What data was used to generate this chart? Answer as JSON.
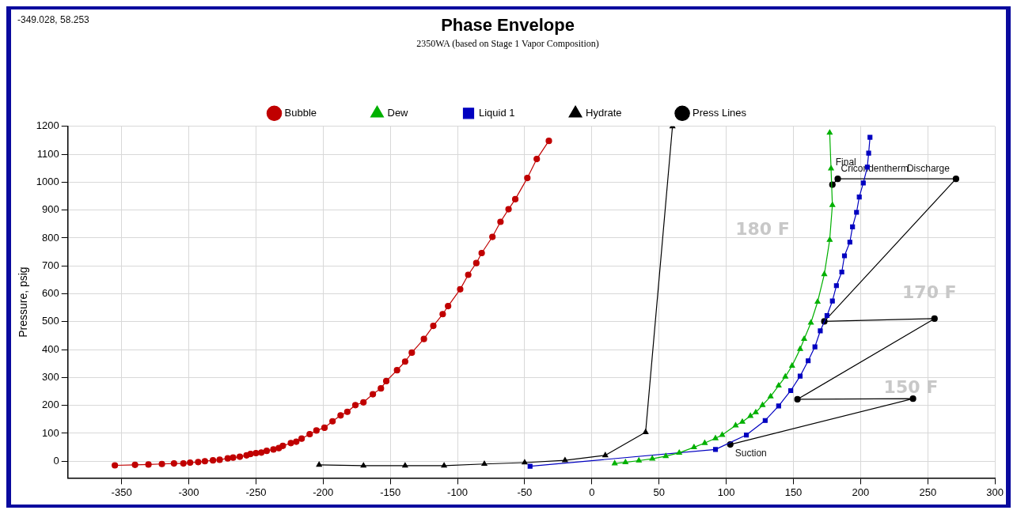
{
  "chart_data": {
    "type": "line",
    "title": "Phase Envelope",
    "subtitle": "2350WA (based on Stage 1 Vapor Composition)",
    "ylabel": "Pressure, psig",
    "xlim": [
      -390,
      300
    ],
    "xticks": [
      -350,
      -300,
      -250,
      -200,
      -150,
      -100,
      -50,
      0,
      50,
      100,
      150,
      200,
      250,
      300
    ],
    "ylim": [
      -60,
      1200
    ],
    "yticks": [
      0,
      100,
      200,
      300,
      400,
      500,
      600,
      700,
      800,
      900,
      1000,
      1100,
      1200
    ],
    "grid": true,
    "legend": "top",
    "line_style": "solid",
    "series": [
      {
        "name": "Bubble",
        "color": "#c00000",
        "marker": "circle",
        "x": [
          -355,
          -340,
          -330,
          -320,
          -311,
          -304,
          -299,
          -293,
          -288,
          -282,
          -277,
          -271,
          -267,
          -262,
          -257,
          -254,
          -250,
          -246,
          -242,
          -237,
          -233,
          -230,
          -224,
          -220,
          -216,
          -210,
          -205,
          -199,
          -193,
          -187,
          -182,
          -176,
          -170,
          -163,
          -157,
          -153,
          -145,
          -139,
          -134,
          -125,
          -118,
          -111,
          -107,
          -98,
          -92,
          -86,
          -82,
          -74,
          -68,
          -62,
          -57,
          -48,
          -41,
          -32
        ],
        "values": [
          -15,
          -13,
          -12,
          -10,
          -8,
          -8,
          -5,
          -3,
          0,
          3,
          5,
          10,
          13,
          16,
          21,
          26,
          29,
          31,
          37,
          42,
          47,
          55,
          65,
          70,
          81,
          97,
          110,
          120,
          143,
          164,
          177,
          201,
          211,
          240,
          261,
          287,
          326,
          357,
          389,
          438,
          485,
          527,
          556,
          616,
          668,
          710,
          746,
          804,
          858,
          903,
          939,
          1015,
          1083,
          1148
        ]
      },
      {
        "name": "Dew",
        "color": "#00b000",
        "marker": "triangle",
        "x": [
          17,
          25,
          35,
          45,
          55,
          65,
          76,
          84,
          92,
          97,
          107,
          112,
          118,
          122,
          127,
          133,
          139,
          144,
          149,
          155,
          158,
          163,
          168,
          173,
          177,
          179,
          178,
          177
        ],
        "values": [
          -8,
          -4,
          2,
          9,
          18,
          30,
          50,
          65,
          82,
          94,
          128,
          141,
          162,
          175,
          201,
          232,
          271,
          303,
          342,
          402,
          438,
          496,
          571,
          670,
          793,
          918,
          1049,
          1177
        ]
      },
      {
        "name": "Liquid 1",
        "color": "#0000c0",
        "marker": "square",
        "x": [
          -46,
          92,
          115,
          129,
          139,
          148,
          155,
          161,
          166,
          170,
          175,
          179,
          182,
          186,
          188,
          192,
          194,
          197,
          199,
          202,
          205,
          206,
          207
        ],
        "values": [
          -18,
          42,
          94,
          146,
          198,
          253,
          305,
          360,
          410,
          467,
          522,
          574,
          629,
          678,
          736,
          785,
          840,
          892,
          947,
          997,
          1054,
          1104,
          1161
        ]
      },
      {
        "name": "Hydrate",
        "color": "#000000",
        "marker": "triangle",
        "x": [
          -203,
          -170,
          -139,
          -110,
          -80,
          -50,
          -20,
          10,
          40,
          60
        ],
        "values": [
          -13,
          -16,
          -16,
          -16,
          -10,
          -5,
          3,
          21,
          104,
          1200
        ]
      },
      {
        "name": "Press Lines",
        "color": "#000000",
        "marker": "circle",
        "x": [
          103,
          239,
          153,
          255,
          173,
          271,
          183,
          179
        ],
        "values": [
          60,
          224,
          222,
          511,
          501,
          1012,
          1012,
          991
        ]
      }
    ],
    "annotations": [
      "-349.028, 58.253",
      {
        "text": "Suction",
        "x": 103,
        "y": 60
      },
      {
        "text": "Final",
        "x": 179,
        "y": 991
      },
      {
        "text": "Cricondentherm",
        "x": 183,
        "y": 1012
      },
      {
        "text": "Discharge",
        "x": 271,
        "y": 1012
      },
      "180 F",
      "170 F",
      "150 F"
    ]
  }
}
